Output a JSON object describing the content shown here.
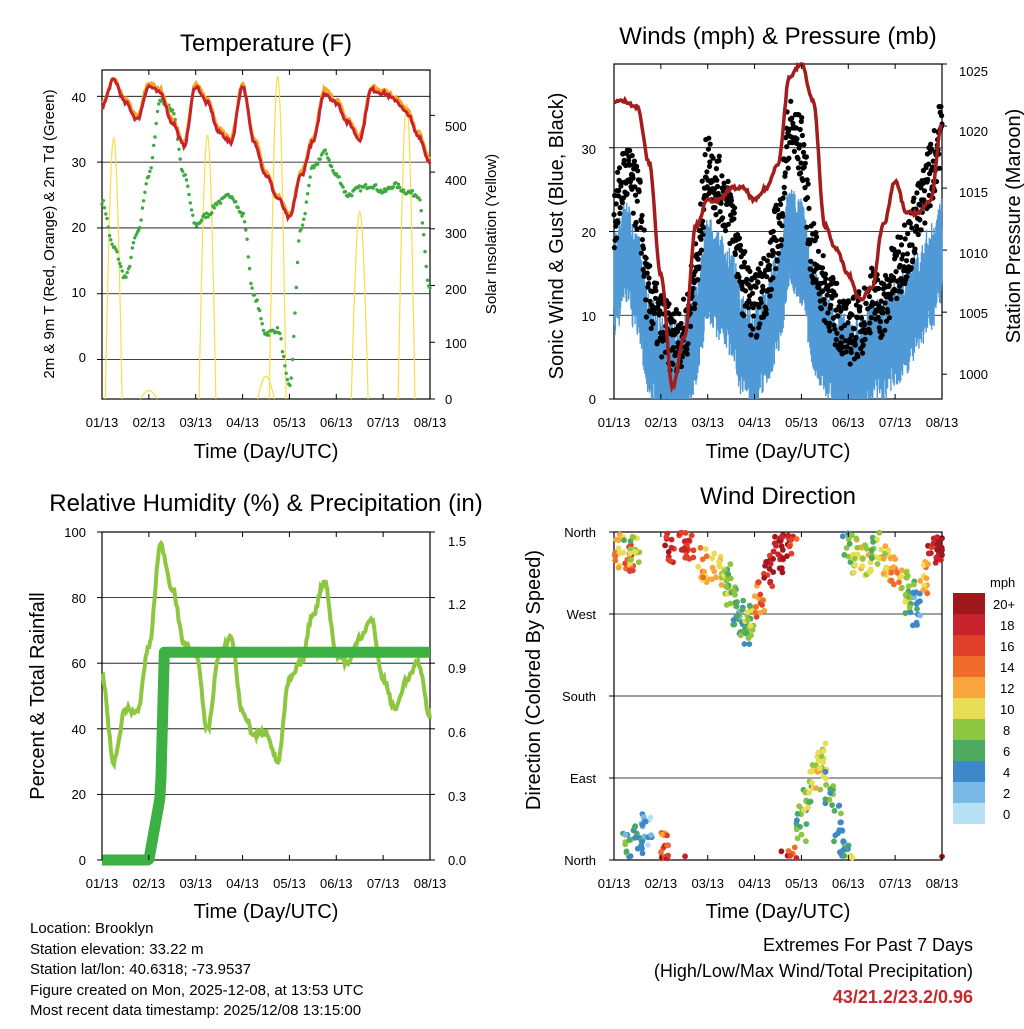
{
  "x_tick_labels": [
    "01/13",
    "02/13",
    "03/13",
    "04/13",
    "05/13",
    "06/13",
    "07/13",
    "08/13"
  ],
  "x_axis_label": "Time (Day/UTC)",
  "colors": {
    "temp_2m": "#c8232c",
    "temp_9m": "#f5a623",
    "dewpoint": "#3daa3d",
    "solar": "#f7de48",
    "gust": "#000000",
    "wind": "#4f9ad6",
    "pressure": "#a31d1d",
    "rh": "#8dc63f",
    "precip": "#3cb043"
  },
  "chart_data": [
    {
      "id": "temperature",
      "type": "line",
      "title": "Temperature (F)",
      "xlabel": "Time (Day/UTC)",
      "ylabel": "2m & 9m T (Red, Orange) & 2m Td (Green)",
      "ylabel_right": "Solar Insolation (Yellow)",
      "ylim": [
        -6,
        44
      ],
      "ylim_right": [
        0,
        580
      ],
      "yticks": [
        0,
        10,
        20,
        30,
        40
      ],
      "yticks_right": [
        0,
        100,
        200,
        300,
        400,
        500
      ],
      "x": [
        0,
        0.25,
        0.5,
        0.75,
        1,
        1.25,
        1.5,
        1.75,
        2,
        2.25,
        2.5,
        2.75,
        3,
        3.25,
        3.5,
        3.75,
        4,
        4.25,
        4.5,
        4.75,
        5,
        5.25,
        5.5,
        5.75,
        6,
        6.25,
        6.5,
        6.75,
        7
      ],
      "series": [
        {
          "name": "2m T",
          "color": "#c8232c",
          "values": [
            38.5,
            42.5,
            39,
            36.5,
            41.5,
            40.5,
            36,
            32.5,
            41.5,
            39,
            34.5,
            33,
            41.5,
            33,
            28,
            24.5,
            21.5,
            28,
            33,
            40.5,
            39,
            36,
            33.5,
            41,
            40.5,
            39.5,
            37.5,
            34,
            30
          ]
        },
        {
          "name": "9m T",
          "color": "#f5a623",
          "values": [
            39,
            42.5,
            39.5,
            37,
            42,
            41,
            36.5,
            33,
            42,
            39.5,
            35,
            33.5,
            42,
            33.5,
            28.5,
            25,
            22,
            28.5,
            33.5,
            41,
            39.5,
            36.5,
            34,
            41.5,
            41,
            40,
            38,
            34.5,
            30.5
          ]
        },
        {
          "name": "2m Td",
          "color": "#3daa3d",
          "values": [
            24,
            17,
            12.5,
            19,
            28,
            39.5,
            38,
            28,
            20.5,
            22,
            24,
            25,
            22,
            9.5,
            4,
            4.5,
            -4,
            20,
            29,
            31.5,
            28,
            25,
            26,
            26.5,
            25.5,
            26.5,
            25.5,
            25,
            10.5
          ]
        },
        {
          "name": "Solar",
          "color": "#f7de48",
          "axis": "right",
          "values": [
            0,
            460,
            0,
            0,
            15,
            0,
            0,
            0,
            0,
            465,
            0,
            0,
            0,
            0,
            40,
            570,
            0,
            0,
            0,
            0,
            0,
            0,
            330,
            0,
            0,
            0,
            520,
            0,
            0
          ]
        }
      ]
    },
    {
      "id": "winds",
      "type": "scatter",
      "title": "Winds (mph) & Pressure (mb)",
      "xlabel": "Time (Day/UTC)",
      "ylabel": "Sonic Wind & Gust (Blue, Black)",
      "ylabel_right": "Station Pressure (Maroon)",
      "ylim": [
        0,
        40
      ],
      "ylim_right": [
        998,
        1025
      ],
      "yticks": [
        0,
        10,
        20,
        30
      ],
      "yticks_right": [
        1000,
        1005,
        1010,
        1015,
        1020,
        1025
      ],
      "x": [
        0,
        0.25,
        0.5,
        0.75,
        1,
        1.25,
        1.5,
        1.75,
        2,
        2.25,
        2.5,
        2.75,
        3,
        3.25,
        3.5,
        3.75,
        4,
        4.25,
        4.5,
        4.75,
        5,
        5.25,
        5.5,
        5.75,
        6,
        6.25,
        6.5,
        6.75,
        7
      ],
      "series": [
        {
          "name": "Gust",
          "color": "#000000",
          "values": [
            22,
            27,
            24,
            12,
            9,
            7,
            8,
            15,
            28,
            25,
            22,
            14,
            11,
            14,
            20,
            32,
            30,
            17,
            13,
            10,
            8,
            9,
            12,
            11,
            15,
            18,
            22,
            27,
            32
          ]
        },
        {
          "name": "Wind",
          "color": "#4f9ad6",
          "values": [
            14,
            18,
            14,
            7,
            4,
            3,
            4,
            8,
            16,
            14,
            12,
            7,
            5,
            8,
            12,
            20,
            18,
            10,
            7,
            5,
            4,
            4,
            6,
            6,
            8,
            10,
            12,
            15,
            18
          ]
        },
        {
          "name": "Pressure",
          "color": "#a31d1d",
          "axis": "right",
          "values": [
            1022,
            1022,
            1021.5,
            1017,
            1008,
            999,
            1003,
            1012,
            1014,
            1014,
            1015,
            1015,
            1014,
            1015,
            1017,
            1024,
            1025,
            1022,
            1012,
            1010,
            1008,
            1006,
            1007,
            1012,
            1015.5,
            1013,
            1013,
            1014,
            1020
          ]
        }
      ]
    },
    {
      "id": "humidity",
      "type": "line",
      "title": "Relative Humidity (%) & Precipitation (in)",
      "xlabel": "Time (Day/UTC)",
      "ylabel": "Percent & Total Rainfall",
      "ylim": [
        0,
        100
      ],
      "ylim_right": [
        0,
        1.5
      ],
      "yticks": [
        0,
        20,
        40,
        60,
        80,
        100
      ],
      "yticks_right": [
        "0.0",
        "0.3",
        "0.6",
        "0.9",
        "1.2",
        "1.5"
      ],
      "x": [
        0,
        0.25,
        0.5,
        0.75,
        1,
        1.25,
        1.5,
        1.75,
        2,
        2.25,
        2.5,
        2.75,
        3,
        3.25,
        3.5,
        3.75,
        4,
        4.25,
        4.5,
        4.75,
        5,
        5.25,
        5.5,
        5.75,
        6,
        6.25,
        6.5,
        6.75,
        7
      ],
      "series": [
        {
          "name": "RH",
          "color": "#8dc63f",
          "values": [
            56,
            30,
            46,
            45,
            65,
            96,
            83,
            66,
            63,
            40,
            62,
            68,
            45,
            38,
            39,
            30,
            55,
            60,
            75,
            85,
            63,
            60,
            68,
            73,
            55,
            46,
            55,
            60,
            44
          ]
        },
        {
          "name": "Precipitation",
          "color": "#3cb043",
          "axis": "right",
          "x": [
            0,
            0.75,
            1,
            1.25,
            1.33,
            1.5,
            2,
            3,
            4,
            5,
            6,
            7
          ],
          "values": [
            0,
            0,
            0,
            0.3,
            0.95,
            0.95,
            0.95,
            0.95,
            0.95,
            0.95,
            0.95,
            0.95
          ]
        }
      ]
    },
    {
      "id": "wind_direction",
      "type": "scatter",
      "title": "Wind Direction",
      "xlabel": "Time (Day/UTC)",
      "ylabel": "Direction (Colored By Speed)",
      "yticks": [
        "North",
        "West",
        "South",
        "East",
        "North"
      ],
      "ylim": [
        0,
        360
      ],
      "colorbar_title": "mph",
      "colorbar_labels": [
        "20+",
        "18",
        "16",
        "14",
        "12",
        "10",
        "8",
        "6",
        "4",
        "2",
        "0"
      ],
      "colorbar_colors": [
        "#a1181c",
        "#c8232c",
        "#e0402a",
        "#f06c2b",
        "#f8a53b",
        "#e9dd55",
        "#8dc63f",
        "#4daa60",
        "#3d89c8",
        "#7ab8e6",
        "#b9e1f6"
      ],
      "points_dir": [
        340,
        330,
        345,
        10,
        20,
        35,
        345,
        350,
        325,
        320,
        310,
        295,
        265,
        255,
        260,
        285,
        315,
        335,
        350,
        355,
        40,
        70,
        95,
        110,
        80,
        40,
        15,
        345,
        335,
        330,
        340,
        325,
        320,
        300,
        290,
        275,
        310,
        340,
        345,
        10,
        350
      ],
      "points_x": [
        0.1,
        0.3,
        0.45,
        0.3,
        0.5,
        0.7,
        1.2,
        1.6,
        1.9,
        2.2,
        2.4,
        2.5,
        2.65,
        2.8,
        2.9,
        3.1,
        3.3,
        3.5,
        3.65,
        3.8,
        4.0,
        4.15,
        4.3,
        4.45,
        4.6,
        4.8,
        4.9,
        5.0,
        5.2,
        5.4,
        5.6,
        5.8,
        6.0,
        6.2,
        6.3,
        6.45,
        6.6,
        6.8,
        6.95,
        1.1,
        1.5
      ],
      "points_speed": [
        12,
        16,
        10,
        5,
        4,
        3,
        18,
        16,
        12,
        10,
        8,
        7,
        5,
        6,
        8,
        14,
        18,
        20,
        19,
        16,
        6,
        8,
        10,
        9,
        7,
        5,
        4,
        8,
        10,
        9,
        8,
        11,
        12,
        10,
        6,
        4,
        12,
        18,
        20,
        15,
        17
      ]
    }
  ],
  "temperature": {
    "title": "Temperature (F)",
    "ylabel": "2m & 9m T (Red, Orange) & 2m Td (Green)",
    "ylabel_right": "Solar Insolation (Yellow)",
    "yticks": [
      "40",
      "30",
      "20",
      "10",
      "0"
    ],
    "yticks_right": [
      "500",
      "400",
      "300",
      "200",
      "100",
      "0"
    ]
  },
  "winds": {
    "title": "Winds (mph) & Pressure (mb)",
    "ylabel": "Sonic Wind & Gust (Blue, Black)",
    "ylabel_right": "Station Pressure (Maroon)",
    "yticks": [
      "30",
      "20",
      "10",
      "0"
    ],
    "yticks_right": [
      "1025",
      "1020",
      "1015",
      "1010",
      "1005",
      "1000"
    ]
  },
  "humidity": {
    "title": "Relative Humidity (%) & Precipitation (in)",
    "ylabel": "Percent & Total Rainfall",
    "yticks": [
      "100",
      "80",
      "60",
      "40",
      "20",
      "0"
    ],
    "yticks_right": [
      "1.5",
      "1.2",
      "0.9",
      "0.6",
      "0.3",
      "0.0"
    ]
  },
  "direction": {
    "title": "Wind Direction",
    "ylabel": "Direction (Colored By Speed)",
    "yticks": [
      "North",
      "West",
      "South",
      "East",
      "North"
    ]
  },
  "colorbar": {
    "title": "mph",
    "labels": [
      "20+",
      "18",
      "16",
      "14",
      "12",
      "10",
      "8",
      "6",
      "4",
      "2",
      "0"
    ]
  },
  "info": {
    "location": "Location: Brooklyn",
    "elevation": "Station elevation: 33.22 m",
    "latlon": "Station lat/lon: 40.6318; -73.9537",
    "created": "Figure created on Mon, 2025-12-08, at 13:53 UTC",
    "recent": "Most recent data timestamp: 2025/12/08 13:15:00"
  },
  "extremes": {
    "line1": "Extremes For Past 7 Days",
    "line2": "(High/Low/Max Wind/Total Precipitation)",
    "values": "43/21.2/23.2/0.96"
  }
}
